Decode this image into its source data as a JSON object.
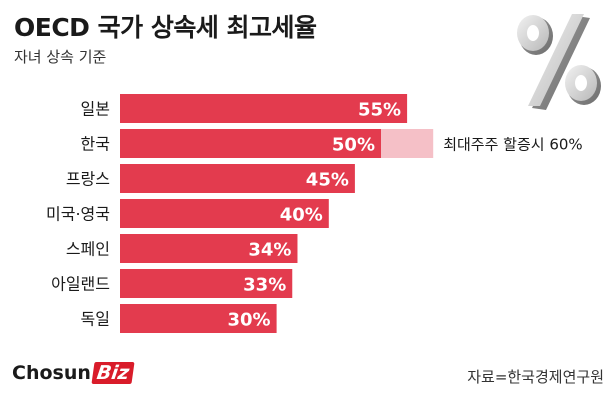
{
  "header": {
    "title": "OECD 국가 상속세 최고세율",
    "subtitle": "자녀 상속 기준"
  },
  "footer": {
    "logo_main": "Chosun",
    "logo_biz": "Biz",
    "source": "자료=한국경제연구원"
  },
  "colors": {
    "bar": "#e33b4e",
    "bar_extension": "#f5c0c7",
    "label_text": "#ffffff",
    "category_text": "#1a1a1a"
  },
  "decoration": {
    "icon": "percent-icon"
  },
  "chart_data": {
    "type": "bar",
    "orientation": "horizontal",
    "title": "OECD 국가 상속세 최고세율",
    "subtitle": "자녀 상속 기준",
    "categories": [
      "일본",
      "한국",
      "프랑스",
      "미국·영국",
      "스페인",
      "아일랜드",
      "독일"
    ],
    "values": [
      55,
      50,
      45,
      40,
      34,
      33,
      30
    ],
    "value_labels": [
      "55%",
      "50%",
      "45%",
      "40%",
      "34%",
      "33%",
      "30%"
    ],
    "extension": {
      "category": "한국",
      "value": 60,
      "label": "최대주주 할증시 60%"
    },
    "xlim": [
      0,
      60
    ],
    "grid": false
  }
}
